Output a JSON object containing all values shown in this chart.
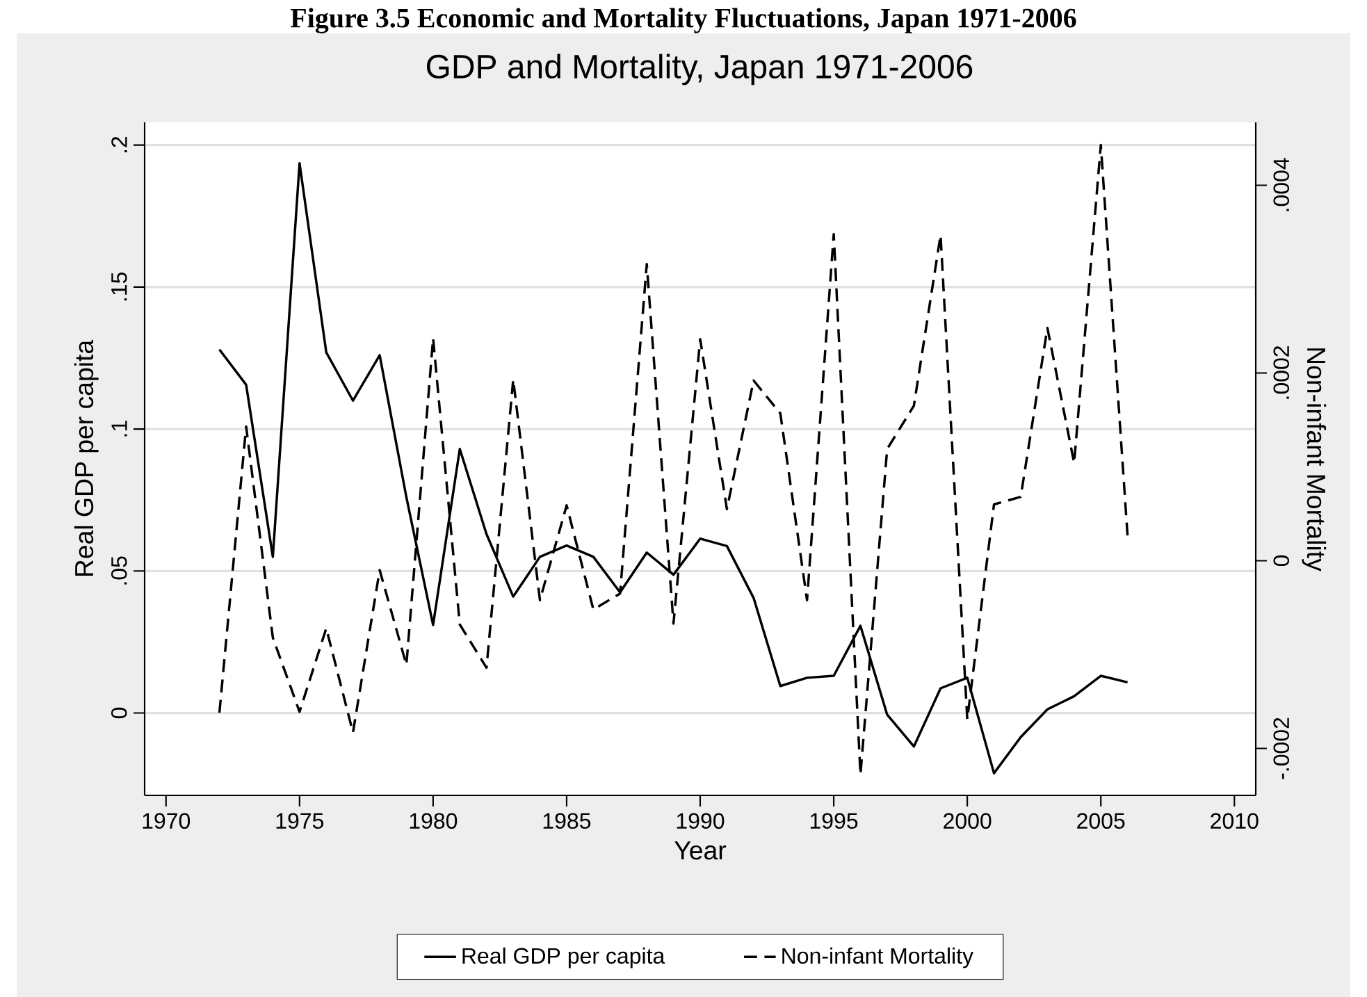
{
  "chart_data": {
    "type": "line",
    "title": "GDP and Mortality, Japan 1971-2006",
    "xlabel": "Year",
    "ylabel": "Real GDP per capita",
    "y2label": "Non-infant Mortality",
    "annotations": [
      "Figure 3.5 Economic and Mortality Fluctuations, Japan 1971-2006"
    ],
    "x": [
      1972,
      1973,
      1974,
      1975,
      1976,
      1977,
      1978,
      1979,
      1980,
      1981,
      1982,
      1983,
      1984,
      1985,
      1986,
      1987,
      1988,
      1989,
      1990,
      1991,
      1992,
      1993,
      1994,
      1995,
      1996,
      1997,
      1998,
      1999,
      2000,
      2001,
      2002,
      2003,
      2004,
      2005,
      2006
    ],
    "series": [
      {
        "name": "Real GDP per capita",
        "color": "#000000",
        "line_style": "solid",
        "values": [
          0.128,
          0.1156,
          0.055,
          0.1936,
          0.127,
          0.11,
          0.126,
          0.076,
          0.031,
          0.093,
          0.063,
          0.041,
          0.055,
          0.059,
          0.055,
          0.0425,
          0.0565,
          0.0487,
          0.0614,
          0.0588,
          0.0405,
          0.0095,
          0.0124,
          0.0131,
          0.0307,
          -0.0006,
          -0.0118,
          0.0087,
          0.0124,
          -0.0212,
          -0.0085,
          0.0013,
          0.0059,
          0.0131,
          0.0108
        ]
      },
      {
        "name": "Non-infant Mortality",
        "color": "#000000",
        "line_style": "dashed",
        "axis": "y2",
        "values": [
          -0.000162,
          0.000143,
          -8.2e-05,
          -0.000161,
          -7.2e-05,
          -0.000183,
          -1e-05,
          -0.000111,
          0.000237,
          -6.8e-05,
          -0.000114,
          0.000193,
          -4.2e-05,
          5.9e-05,
          -5.2e-05,
          -3.5e-05,
          0.000316,
          -6.7e-05,
          0.000236,
          5.5e-05,
          0.000192,
          0.000157,
          -4.2e-05,
          0.000348,
          -0.000228,
          0.000119,
          0.000165,
          0.000347,
          -0.000169,
          6e-05,
          6.8e-05,
          0.000248,
          0.000104,
          0.000443,
          2.7e-05
        ]
      }
    ],
    "xlim": [
      1969.2,
      2010.8
    ],
    "xticks": [
      1970,
      1975,
      1980,
      1985,
      1990,
      1995,
      2000,
      2005,
      2010
    ],
    "ylim": [
      -0.029,
      0.208
    ],
    "yticks": [
      0,
      {
        "value": 0.05,
        "label": ".05"
      },
      {
        "value": 0.1,
        "label": ".1"
      },
      {
        "value": 0.15,
        "label": ".15"
      },
      {
        "value": 0.2,
        "label": ".2"
      }
    ],
    "y2lim": [
      -0.00025,
      0.000467
    ],
    "y2ticks": [
      {
        "value": -0.0002,
        "label": "-.0002"
      },
      0,
      {
        "value": 0.0002,
        "label": ".0002"
      },
      {
        "value": 0.0004,
        "label": ".0004"
      }
    ],
    "grid": "y",
    "legend": "bottom"
  }
}
